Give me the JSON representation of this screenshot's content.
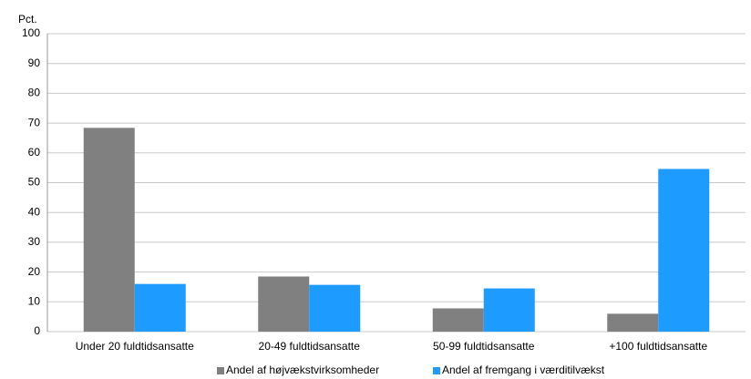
{
  "chart_data": {
    "type": "bar",
    "y_label": "Pct.",
    "categories": [
      "Under 20 fuldtidsansatte",
      "20-49 fuldtidsansatte",
      "50-99 fuldtidsansatte",
      "+100 fuldtidsansatte"
    ],
    "series": [
      {
        "name": "Andel af højvækstvirksomheder",
        "color": "#808080",
        "values": [
          68.4,
          18.5,
          7.8,
          6
        ]
      },
      {
        "name": "Andel af fremgang i værditilvækst",
        "color": "#1e9bff",
        "values": [
          16,
          15.7,
          14.5,
          54.6
        ]
      }
    ],
    "ylim": [
      0,
      100
    ],
    "yticks": [
      0,
      10,
      20,
      30,
      40,
      50,
      60,
      70,
      80,
      90,
      100
    ],
    "grid": true,
    "legend": "bottom"
  }
}
